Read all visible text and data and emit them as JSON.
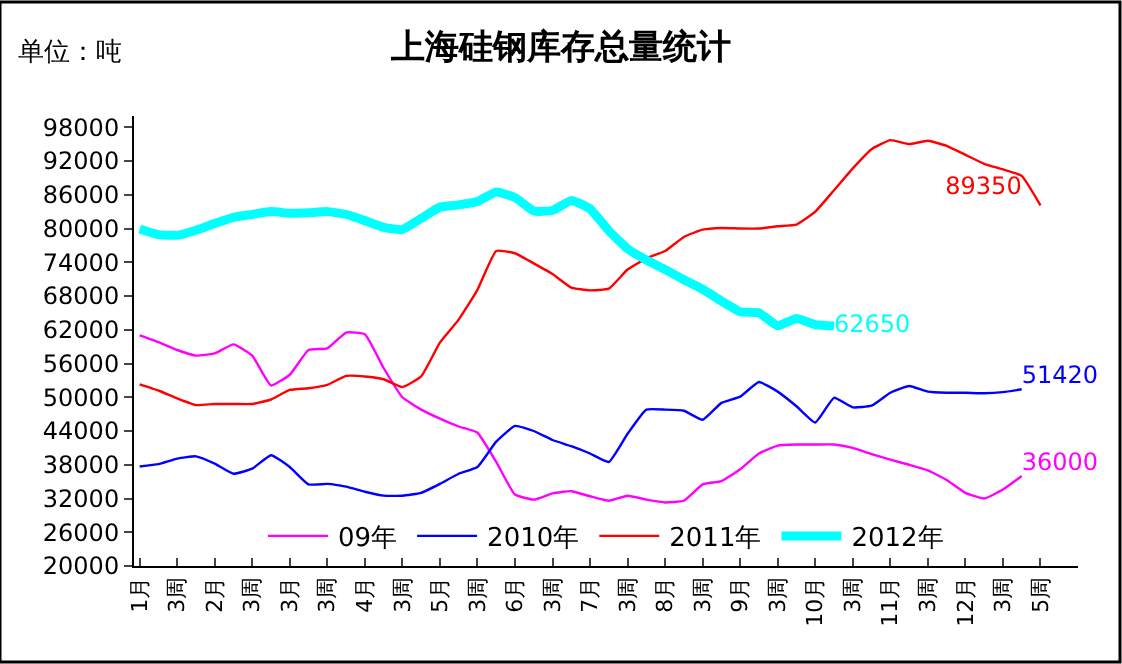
{
  "chart_data": {
    "type": "line",
    "title": "上海硅钢库存总量统计",
    "annotations": [
      "单位：吨"
    ],
    "categories": [
      "1月",
      null,
      "3周",
      null,
      "2月",
      null,
      "3周",
      null,
      "3月",
      null,
      "3周",
      null,
      "4月",
      null,
      "3周",
      null,
      "5月",
      null,
      "3周",
      null,
      "6月",
      null,
      "3周",
      null,
      "7月",
      null,
      "3周",
      null,
      "8月",
      null,
      "3周",
      null,
      "9月",
      null,
      "3周",
      null,
      "10月",
      null,
      "3周",
      null,
      "11月",
      null,
      "3周",
      null,
      "12月",
      null,
      "3周",
      null,
      "5周"
    ],
    "ylim": [
      20000,
      100000
    ],
    "yticks": [
      20000,
      26000,
      32000,
      38000,
      44000,
      50000,
      56000,
      62000,
      68000,
      74000,
      80000,
      86000,
      92000,
      98000
    ],
    "legend": "bottom",
    "line_style": "solid",
    "series": [
      {
        "name": "09年",
        "color": "#ff00ff",
        "values": [
          61000,
          59800,
          58400,
          57400,
          57800,
          59400,
          57400,
          52100,
          54000,
          58400,
          58700,
          61500,
          61200,
          55200,
          50000,
          47800,
          46200,
          44800,
          43700,
          38500,
          32700,
          31800,
          32900,
          33300,
          32400,
          31600,
          32500,
          31800,
          31300,
          31600,
          34500,
          35100,
          37200,
          40000,
          41400,
          41600,
          41600,
          41600,
          41000,
          39900,
          38900,
          38000,
          37000,
          35300,
          33000,
          32000,
          33600,
          36000,
          null
        ],
        "value_labels": [
          null,
          null,
          null,
          null,
          null,
          null,
          null,
          null,
          null,
          null,
          null,
          null,
          null,
          null,
          null,
          null,
          null,
          null,
          null,
          null,
          null,
          null,
          null,
          null,
          null,
          null,
          null,
          null,
          null,
          null,
          null,
          null,
          null,
          null,
          null,
          null,
          null,
          null,
          null,
          null,
          null,
          null,
          null,
          null,
          null,
          null,
          null,
          "36000",
          null
        ]
      },
      {
        "name": "2010年",
        "color": "#0000ff",
        "values": [
          37700,
          38100,
          39100,
          39500,
          38200,
          36400,
          37300,
          39700,
          37600,
          34500,
          34600,
          34100,
          33200,
          32500,
          32500,
          33000,
          34600,
          36400,
          37600,
          42100,
          44900,
          44000,
          42400,
          41300,
          40000,
          38500,
          43500,
          47800,
          47800,
          47600,
          46000,
          49000,
          50100,
          52700,
          51000,
          48400,
          45500,
          49900,
          48200,
          48500,
          50800,
          52000,
          51000,
          50800,
          50800,
          50700,
          50900,
          51420,
          null
        ],
        "value_labels": [
          null,
          null,
          null,
          null,
          null,
          null,
          null,
          null,
          null,
          null,
          null,
          null,
          null,
          null,
          null,
          null,
          null,
          null,
          null,
          null,
          null,
          null,
          null,
          null,
          null,
          null,
          null,
          null,
          null,
          null,
          null,
          null,
          null,
          null,
          null,
          null,
          null,
          null,
          null,
          null,
          null,
          null,
          null,
          null,
          null,
          null,
          null,
          "51420",
          null
        ]
      },
      {
        "name": "2011年",
        "color": "#ff0000",
        "values": [
          52300,
          51200,
          49800,
          48600,
          48800,
          48800,
          48800,
          49600,
          51300,
          51600,
          52200,
          53800,
          53700,
          53200,
          51800,
          53700,
          59700,
          63800,
          69100,
          76000,
          75600,
          73800,
          71900,
          69500,
          69000,
          69300,
          72700,
          74700,
          76000,
          78500,
          79800,
          80100,
          80000,
          80000,
          80400,
          80700,
          83000,
          86800,
          90700,
          94100,
          95700,
          95000,
          95600,
          94700,
          93100,
          91500,
          90500,
          89350,
          84100
        ],
        "value_labels": [
          null,
          null,
          null,
          null,
          null,
          null,
          null,
          null,
          null,
          null,
          null,
          null,
          null,
          null,
          null,
          null,
          null,
          null,
          null,
          null,
          null,
          null,
          null,
          null,
          null,
          null,
          null,
          null,
          null,
          null,
          null,
          null,
          null,
          null,
          null,
          null,
          null,
          null,
          null,
          null,
          null,
          null,
          null,
          null,
          null,
          null,
          null,
          "89350",
          null
        ]
      },
      {
        "name": "2012年",
        "color": "#00ffff",
        "values": [
          79900,
          78900,
          78800,
          79700,
          80900,
          82000,
          82500,
          83000,
          82700,
          82800,
          83000,
          82500,
          81400,
          80200,
          79800,
          81800,
          83800,
          84200,
          84800,
          86500,
          85500,
          83100,
          83200,
          85000,
          83500,
          79600,
          76400,
          74400,
          72700,
          70900,
          69200,
          67100,
          65200,
          65000,
          62700,
          64000,
          62900,
          62650,
          null,
          null,
          null,
          null,
          null,
          null,
          null,
          null,
          null,
          null,
          null
        ],
        "value_labels": [
          null,
          null,
          null,
          null,
          null,
          null,
          null,
          null,
          null,
          null,
          null,
          null,
          null,
          null,
          null,
          null,
          null,
          null,
          null,
          null,
          null,
          null,
          null,
          null,
          null,
          null,
          null,
          null,
          null,
          null,
          null,
          null,
          null,
          null,
          null,
          null,
          null,
          "62650",
          null,
          null,
          null,
          null,
          null,
          null,
          null,
          null,
          null,
          null,
          null
        ]
      }
    ]
  }
}
